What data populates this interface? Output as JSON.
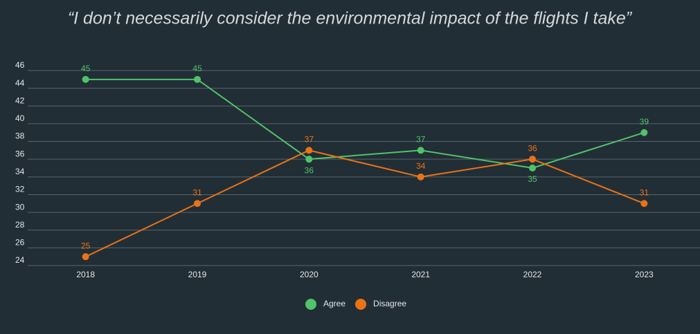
{
  "chart_data": {
    "type": "line",
    "title": "“I don’t necessarily consider the environmental impact of the flights I take”",
    "categories": [
      "2018",
      "2019",
      "2020",
      "2021",
      "2022",
      "2023"
    ],
    "series": [
      {
        "name": "Agree",
        "color": "#4fc469",
        "values": [
          45,
          45,
          36,
          37,
          35,
          39
        ]
      },
      {
        "name": "Disagree",
        "color": "#ea7316",
        "values": [
          25,
          31,
          37,
          34,
          36,
          31
        ]
      }
    ],
    "ylim": [
      24,
      46
    ],
    "yticks": [
      24,
      26,
      28,
      30,
      32,
      34,
      36,
      38,
      40,
      42,
      44,
      46
    ],
    "grid": true,
    "legend": "bottom"
  }
}
